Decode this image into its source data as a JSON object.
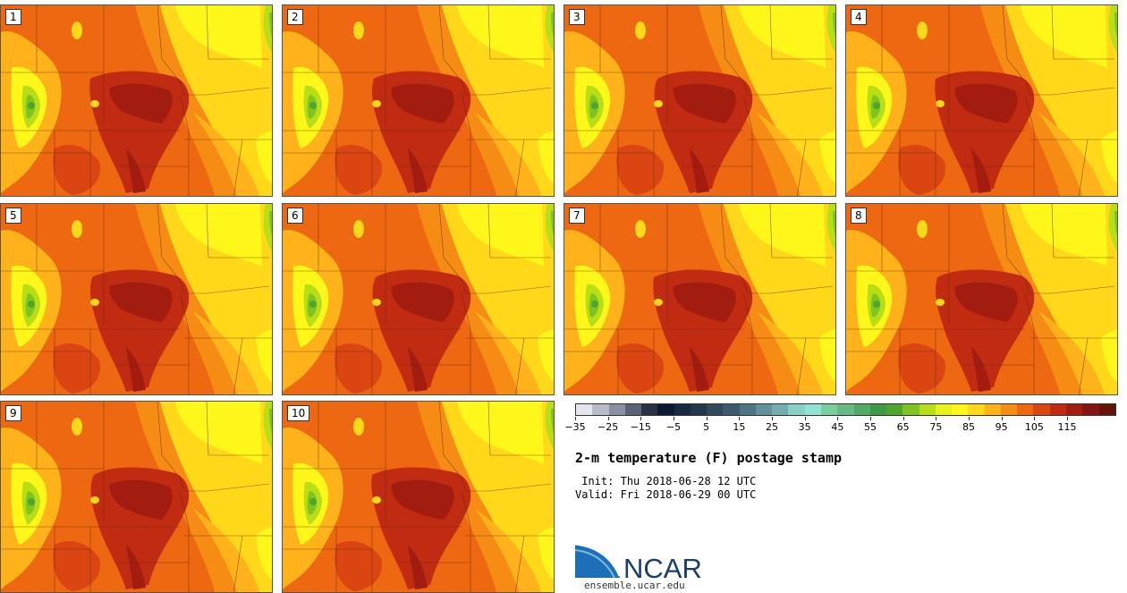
{
  "title": "2-m temperature (F) postage stamp",
  "init_label": " Init:",
  "init_value": "Thu 2018-06-28 12 UTC",
  "valid_label": "Valid:",
  "valid_value": "Fri 2018-06-29 00 UTC",
  "logo": {
    "text": "NCAR",
    "url": "ensemble.ucar.edu"
  },
  "panels": [
    "1",
    "2",
    "3",
    "4",
    "5",
    "6",
    "7",
    "8",
    "9",
    "10"
  ],
  "colorbar": {
    "tick_labels": [
      "−35",
      "−25",
      "−15",
      "−5",
      "5",
      "15",
      "25",
      "35",
      "45",
      "55",
      "65",
      "75",
      "85",
      "95",
      "105",
      "115"
    ],
    "colors": [
      "#e3e6ee",
      "#b8bcc9",
      "#8b8fa3",
      "#5d6178",
      "#2a3146",
      "#0d1a33",
      "#152a40",
      "#22384d",
      "#30495e",
      "#3d5b6e",
      "#4d7584",
      "#62919b",
      "#72aeb0",
      "#8bd0c8",
      "#93e3d3",
      "#79cd9f",
      "#67bb82",
      "#52aa64",
      "#3f9a48",
      "#4ea52f",
      "#80c41f",
      "#b8de16",
      "#e8f31a",
      "#fff61a",
      "#ffd81a",
      "#ffb21a",
      "#f78c14",
      "#ee6711",
      "#da4511",
      "#c12b11",
      "#a21c10",
      "#841510",
      "#651209"
    ]
  }
}
